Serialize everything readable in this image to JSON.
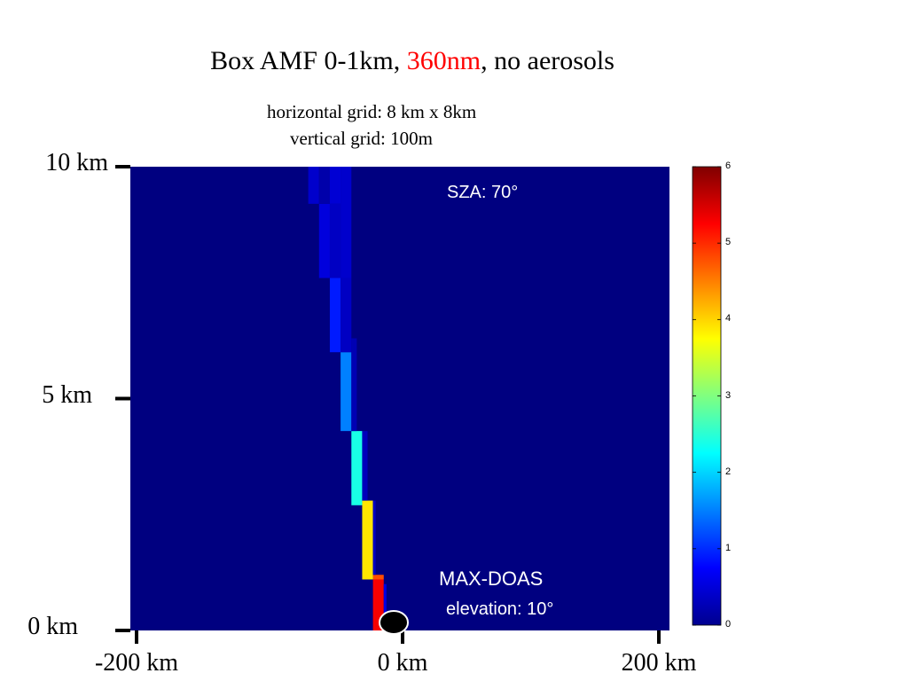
{
  "title": {
    "part1": "Box AMF 0-1km, ",
    "part2": "360nm",
    "part3": ", no aerosols",
    "highlight_color": "#ff0000"
  },
  "subtitle": {
    "line1": "horizontal grid: 8 km x 8km",
    "line2": "vertical grid: 100m"
  },
  "annotations": {
    "sza": "SZA: 70°",
    "instrument": "MAX-DOAS",
    "elevation": "elevation: 10°"
  },
  "chart_data": {
    "type": "heatmap",
    "background_value": 0,
    "colormap": "jet",
    "xlim": [
      -200,
      200
    ],
    "ylim": [
      0,
      10
    ],
    "yticks": [
      {
        "value": 10,
        "label": "10 km"
      },
      {
        "value": 5,
        "label": "5 km"
      },
      {
        "value": 0,
        "label": "0 km"
      }
    ],
    "xticks": [
      {
        "value": -200,
        "label": "-200 km"
      },
      {
        "value": 0,
        "label": "0 km"
      },
      {
        "value": 200,
        "label": "200 km"
      }
    ],
    "colorbar": {
      "min": 0,
      "max": 6,
      "ticks": [
        "0",
        "1",
        "2",
        "3",
        "4",
        "5",
        "6"
      ]
    },
    "cells": [
      {
        "x0": -20,
        "x1": -12,
        "y0": 0,
        "y1": 1.1,
        "value": 5.3
      },
      {
        "x0": -12,
        "x1": -10,
        "y0": 0,
        "y1": 1.0,
        "value": 0.6
      },
      {
        "x0": -20,
        "x1": -12,
        "y0": 1.1,
        "y1": 1.2,
        "value": 4.8
      },
      {
        "x0": -28,
        "x1": -20,
        "y0": 1.1,
        "y1": 2.8,
        "value": 3.9
      },
      {
        "x0": -20,
        "x1": -18,
        "y0": 1.2,
        "y1": 2.8,
        "value": 0.4
      },
      {
        "x0": -36,
        "x1": -28,
        "y0": 2.7,
        "y1": 4.3,
        "value": 2.4
      },
      {
        "x0": -28,
        "x1": -24,
        "y0": 2.8,
        "y1": 4.3,
        "value": 0.35
      },
      {
        "x0": -44,
        "x1": -36,
        "y0": 4.3,
        "y1": 6.0,
        "value": 1.5
      },
      {
        "x0": -36,
        "x1": -32,
        "y0": 4.3,
        "y1": 6.3,
        "value": 0.3
      },
      {
        "x0": -52,
        "x1": -44,
        "y0": 6.0,
        "y1": 7.6,
        "value": 0.9
      },
      {
        "x0": -44,
        "x1": -36,
        "y0": 6.0,
        "y1": 7.6,
        "value": 0.4
      },
      {
        "x0": -60,
        "x1": -52,
        "y0": 7.6,
        "y1": 9.2,
        "value": 0.55
      },
      {
        "x0": -52,
        "x1": -44,
        "y0": 7.6,
        "y1": 9.2,
        "value": 0.4
      },
      {
        "x0": -44,
        "x1": -36,
        "y0": 7.6,
        "y1": 10.0,
        "value": 0.45
      },
      {
        "x0": -68,
        "x1": -60,
        "y0": 9.2,
        "y1": 10.0,
        "value": 0.45
      },
      {
        "x0": -60,
        "x1": -52,
        "y0": 9.2,
        "y1": 10.0,
        "value": 0.25
      },
      {
        "x0": -52,
        "x1": -44,
        "y0": 9.2,
        "y1": 10.0,
        "value": 0.5
      }
    ]
  }
}
